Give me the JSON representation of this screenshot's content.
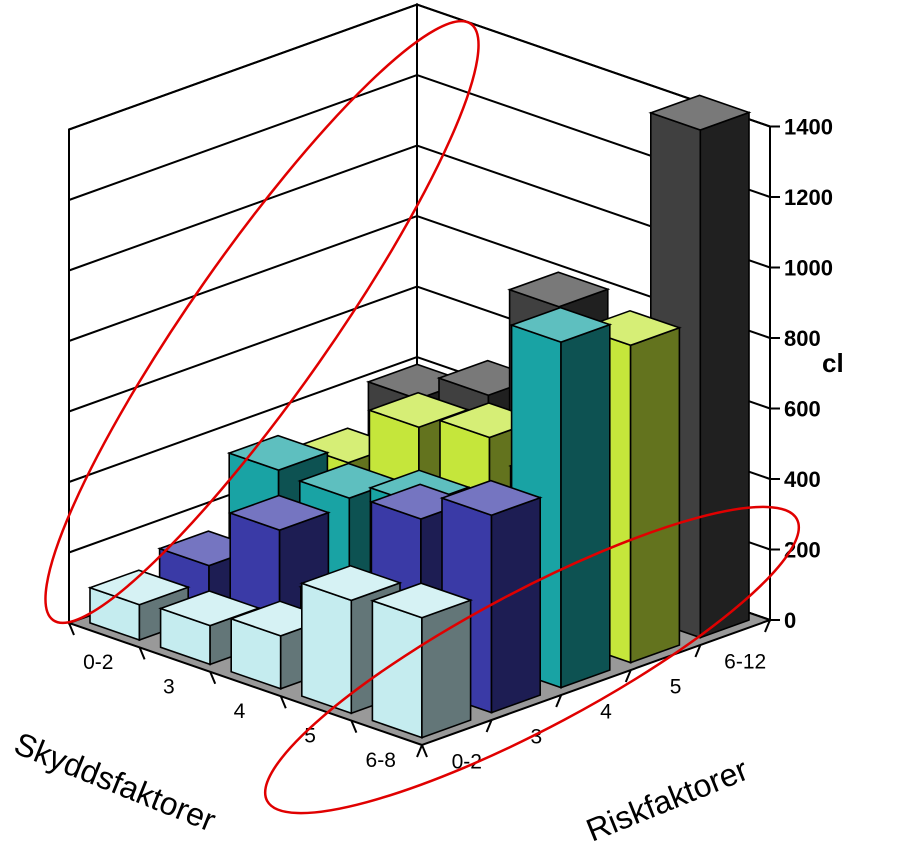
{
  "chart_data": {
    "type": "bar3d",
    "unit_label": "cl",
    "z_ticks": [
      "0",
      "200",
      "400",
      "600",
      "800",
      "1000",
      "1200",
      "1400"
    ],
    "zlim": [
      0,
      1400
    ],
    "x_axis": {
      "title": "Skyddsfaktorer",
      "categories": [
        "0-2",
        "3",
        "4",
        "5",
        "6-8"
      ]
    },
    "y_axis": {
      "title": "Riskfaktorer",
      "categories": [
        "0-2",
        "3",
        "4",
        "5",
        "6-12"
      ]
    },
    "series": [
      {
        "name": "0-2",
        "color": "#c5ecef",
        "values": [
          340,
          320,
          150,
          110,
          100
        ]
      },
      {
        "name": "3",
        "color": "#3a3aa6",
        "values": [
          560,
          480,
          170,
          310,
          140
        ]
      },
      {
        "name": "4",
        "color": "#19a3a4",
        "values": [
          980,
          340,
          380,
          330,
          340
        ]
      },
      {
        "name": "5",
        "color": "#c5e63b",
        "values": [
          900,
          440,
          500,
          460,
          290
        ]
      },
      {
        "name": "6-12",
        "color": "#404040",
        "values": [
          1440,
          700,
          800,
          480,
          400
        ]
      }
    ],
    "grid": true,
    "annotations": [
      {
        "type": "ellipse",
        "color": "#e00000",
        "description": "encircles Riskfaktorer 0-2 row"
      },
      {
        "type": "ellipse",
        "color": "#e00000",
        "description": "encircles Skyddsfaktorer 0-2 column"
      }
    ]
  }
}
